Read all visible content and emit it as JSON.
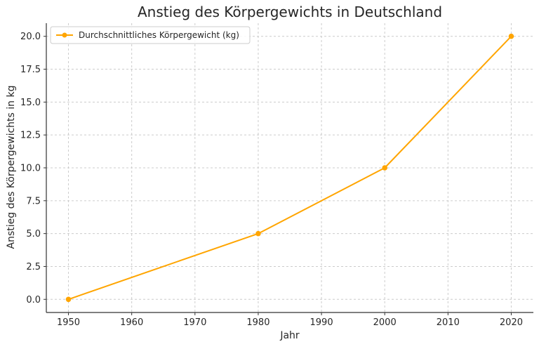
{
  "chart_data": {
    "type": "line",
    "title": "Anstieg des Körpergewichts in Deutschland",
    "xlabel": "Jahr",
    "ylabel": "Anstieg des Körpergewichts in kg",
    "x": [
      1950,
      1980,
      2000,
      2020
    ],
    "series": [
      {
        "name": "Durchschnittliches Körpergewicht (kg)",
        "values": [
          0.0,
          5.0,
          10.0,
          20.0
        ],
        "color": "#ffa500"
      }
    ],
    "xlim": [
      1946.5,
      2023.5
    ],
    "ylim": [
      -1.0,
      21.0
    ],
    "xticks": [
      1950,
      1960,
      1970,
      1980,
      1990,
      2000,
      2010,
      2020
    ],
    "yticks": [
      "0.0",
      "2.5",
      "5.0",
      "7.5",
      "10.0",
      "12.5",
      "15.0",
      "17.5",
      "20.0"
    ],
    "grid": true,
    "legend_position": "top-left"
  }
}
